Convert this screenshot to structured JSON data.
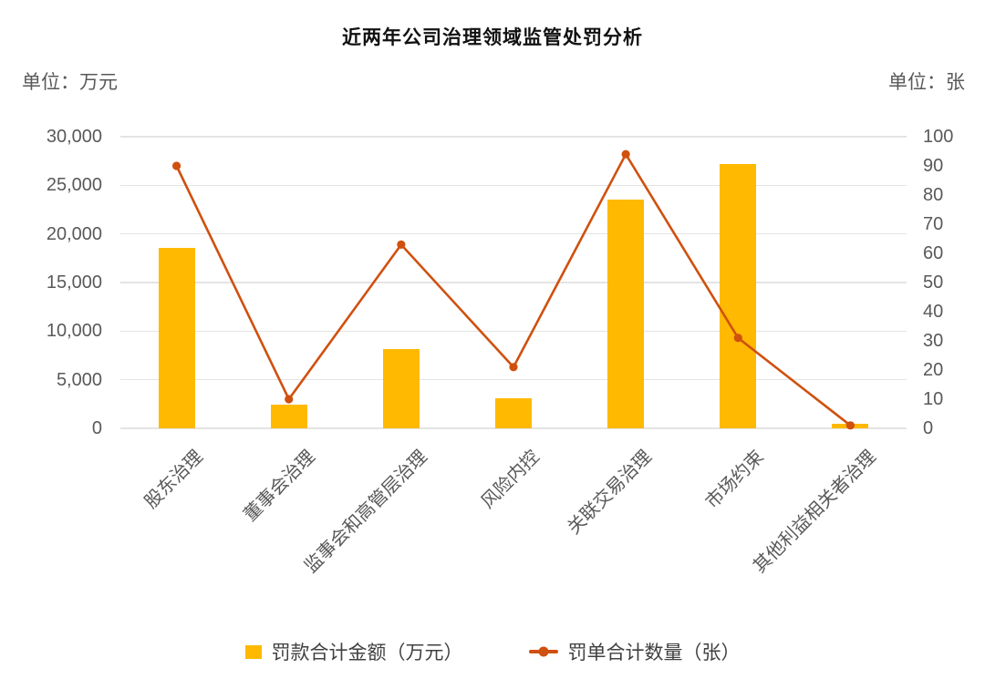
{
  "title": "近两年公司治理领域监管处罚分析",
  "left_axis": {
    "unit_label": "单位：万元",
    "ticks": [
      "30,000",
      "25,000",
      "20,000",
      "15,000",
      "10,000",
      "5,000",
      "0"
    ],
    "min": 0,
    "max": 30000
  },
  "right_axis": {
    "unit_label": "单位：张",
    "ticks": [
      "100",
      "90",
      "80",
      "70",
      "60",
      "50",
      "40",
      "30",
      "20",
      "10",
      "0"
    ],
    "min": 0,
    "max": 100
  },
  "legend": [
    {
      "label": "罚款合计金额（万元）",
      "type": "bar",
      "color": "#FFB900"
    },
    {
      "label": "罚单合计数量（张）",
      "type": "line",
      "color": "#D0500E"
    }
  ],
  "chart_data": {
    "type": "bar",
    "subtype": "combo-bar-line-dual-axis",
    "title": "近两年公司治理领域监管处罚分析",
    "categories": [
      "股东治理",
      "董事会治理",
      "监事会和高管层治理",
      "风险内控",
      "关联交易治理",
      "市场约束",
      "其他利益相关者治理"
    ],
    "series": [
      {
        "name": "罚款合计金额（万元）",
        "type": "bar",
        "axis": "left",
        "color": "#FFB900",
        "values": [
          18600,
          2400,
          8200,
          3100,
          23500,
          27200,
          500
        ]
      },
      {
        "name": "罚单合计数量（张）",
        "type": "line",
        "axis": "right",
        "color": "#D0500E",
        "values": [
          90,
          10,
          63,
          21,
          94,
          31,
          1
        ]
      }
    ],
    "left_ylabel": "单位：万元",
    "right_ylabel": "单位：张",
    "left_ylim": [
      0,
      30000
    ],
    "right_ylim": [
      0,
      100
    ],
    "grid": true,
    "legend_position": "bottom"
  },
  "colors": {
    "bar": "#FFB900",
    "line": "#D0500E",
    "grid": "#E4E4E4",
    "axis_text": "#595959",
    "title_text": "#111111",
    "legend_text": "#404040",
    "background": "#FFFFFF"
  }
}
